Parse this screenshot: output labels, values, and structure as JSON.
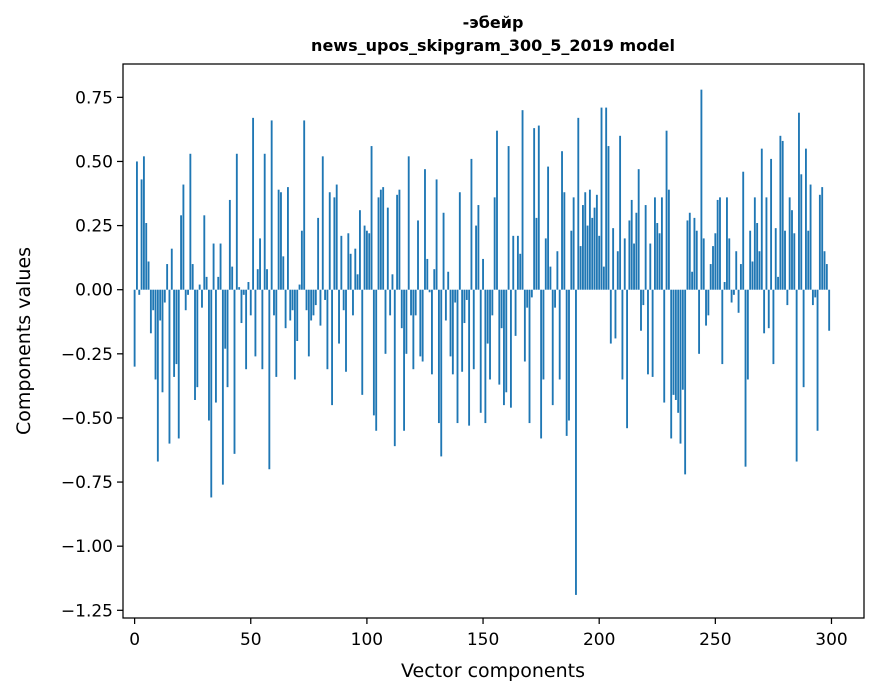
{
  "chart_data": {
    "type": "bar",
    "title_line1": "-эбейр",
    "title_line2": "news_upos_skipgram_300_5_2019 model",
    "xlabel": "Vector components",
    "ylabel": "Components values",
    "xlim": [
      -5,
      314
    ],
    "ylim": [
      -1.28,
      0.88
    ],
    "xticks": [
      0,
      50,
      100,
      150,
      200,
      250,
      300
    ],
    "xtick_labels": [
      "0",
      "50",
      "100",
      "150",
      "200",
      "250",
      "300"
    ],
    "yticks": [
      -1.25,
      -1.0,
      -0.75,
      -0.5,
      -0.25,
      0.0,
      0.25,
      0.5,
      0.75
    ],
    "ytick_labels": [
      "−1.25",
      "−1.00",
      "−0.75",
      "−0.50",
      "−0.25",
      "0.00",
      "0.25",
      "0.50",
      "0.75"
    ],
    "bar_color": "#1f77b4",
    "x": "indices 0..299",
    "values": [
      -0.3,
      0.5,
      -0.02,
      0.43,
      0.52,
      0.26,
      0.11,
      -0.17,
      -0.08,
      -0.35,
      -0.67,
      -0.12,
      -0.4,
      -0.05,
      0.1,
      -0.6,
      0.16,
      -0.34,
      -0.29,
      -0.58,
      0.29,
      0.41,
      -0.08,
      -0.02,
      0.53,
      0.1,
      -0.43,
      -0.38,
      0.02,
      -0.07,
      0.29,
      0.05,
      -0.51,
      -0.81,
      0.18,
      -0.44,
      0.05,
      0.18,
      -0.76,
      -0.23,
      -0.38,
      0.35,
      0.09,
      -0.64,
      0.53,
      0.01,
      -0.13,
      -0.02,
      -0.31,
      0.03,
      -0.1,
      0.67,
      -0.26,
      0.08,
      0.2,
      -0.31,
      0.53,
      0.08,
      -0.7,
      0.66,
      -0.1,
      -0.34,
      0.39,
      0.38,
      0.13,
      -0.15,
      0.4,
      -0.12,
      -0.08,
      -0.35,
      -0.2,
      0.02,
      0.23,
      0.66,
      -0.08,
      -0.26,
      -0.12,
      -0.1,
      -0.06,
      0.28,
      -0.14,
      0.52,
      -0.04,
      -0.31,
      0.38,
      -0.45,
      0.36,
      0.41,
      -0.21,
      0.21,
      -0.08,
      -0.32,
      0.22,
      0.14,
      -0.1,
      0.16,
      0.06,
      0.31,
      -0.41,
      0.25,
      0.23,
      0.22,
      0.56,
      -0.49,
      -0.55,
      0.36,
      0.39,
      0.4,
      -0.25,
      0.32,
      -0.1,
      0.06,
      -0.61,
      0.37,
      0.39,
      -0.15,
      -0.55,
      -0.25,
      0.52,
      -0.1,
      -0.31,
      -0.1,
      0.27,
      -0.26,
      -0.28,
      0.47,
      0.12,
      -0.01,
      -0.33,
      0.08,
      0.43,
      -0.52,
      -0.65,
      0.3,
      -0.12,
      0.07,
      -0.26,
      -0.33,
      -0.05,
      -0.52,
      0.38,
      -0.32,
      -0.13,
      -0.04,
      -0.53,
      0.51,
      -0.31,
      0.25,
      0.33,
      -0.48,
      0.12,
      -0.52,
      -0.21,
      -0.35,
      -0.1,
      0.36,
      0.62,
      -0.37,
      -0.15,
      -0.45,
      -0.4,
      0.56,
      -0.46,
      0.21,
      -0.18,
      0.21,
      0.14,
      0.7,
      -0.28,
      -0.07,
      -0.52,
      -0.03,
      0.63,
      0.28,
      0.64,
      -0.58,
      -0.35,
      0.2,
      0.48,
      0.09,
      -0.45,
      -0.07,
      0.15,
      -0.35,
      0.54,
      0.38,
      -0.57,
      -0.51,
      0.23,
      0.36,
      -1.19,
      0.67,
      0.17,
      0.33,
      0.38,
      0.25,
      0.39,
      0.28,
      0.32,
      0.37,
      0.21,
      0.71,
      0.09,
      0.71,
      0.56,
      -0.21,
      0.24,
      -0.19,
      0.15,
      0.6,
      -0.35,
      0.2,
      -0.54,
      0.27,
      0.35,
      0.18,
      0.3,
      0.47,
      -0.16,
      -0.06,
      0.33,
      -0.33,
      0.18,
      -0.34,
      0.36,
      0.26,
      0.22,
      0.36,
      -0.44,
      0.62,
      0.39,
      -0.58,
      -0.41,
      -0.43,
      -0.48,
      -0.6,
      -0.39,
      -0.72,
      0.27,
      0.3,
      0.07,
      0.28,
      0.23,
      -0.25,
      0.78,
      0.2,
      -0.14,
      -0.1,
      0.1,
      0.17,
      0.22,
      0.35,
      0.36,
      -0.29,
      0.03,
      0.36,
      0.2,
      -0.05,
      -0.02,
      0.15,
      -0.09,
      0.1,
      0.46,
      -0.69,
      -0.35,
      0.23,
      0.11,
      0.36,
      0.26,
      0.15,
      0.55,
      -0.17,
      0.36,
      -0.15,
      0.51,
      -0.29,
      0.24,
      0.05,
      0.6,
      0.58,
      0.23,
      -0.06,
      0.36,
      0.31,
      0.22,
      -0.67,
      0.69,
      0.45,
      -0.38,
      0.55,
      0.23,
      0.41,
      -0.06,
      -0.03,
      -0.55,
      0.37,
      0.4,
      0.15,
      0.1,
      -0.16
    ]
  }
}
